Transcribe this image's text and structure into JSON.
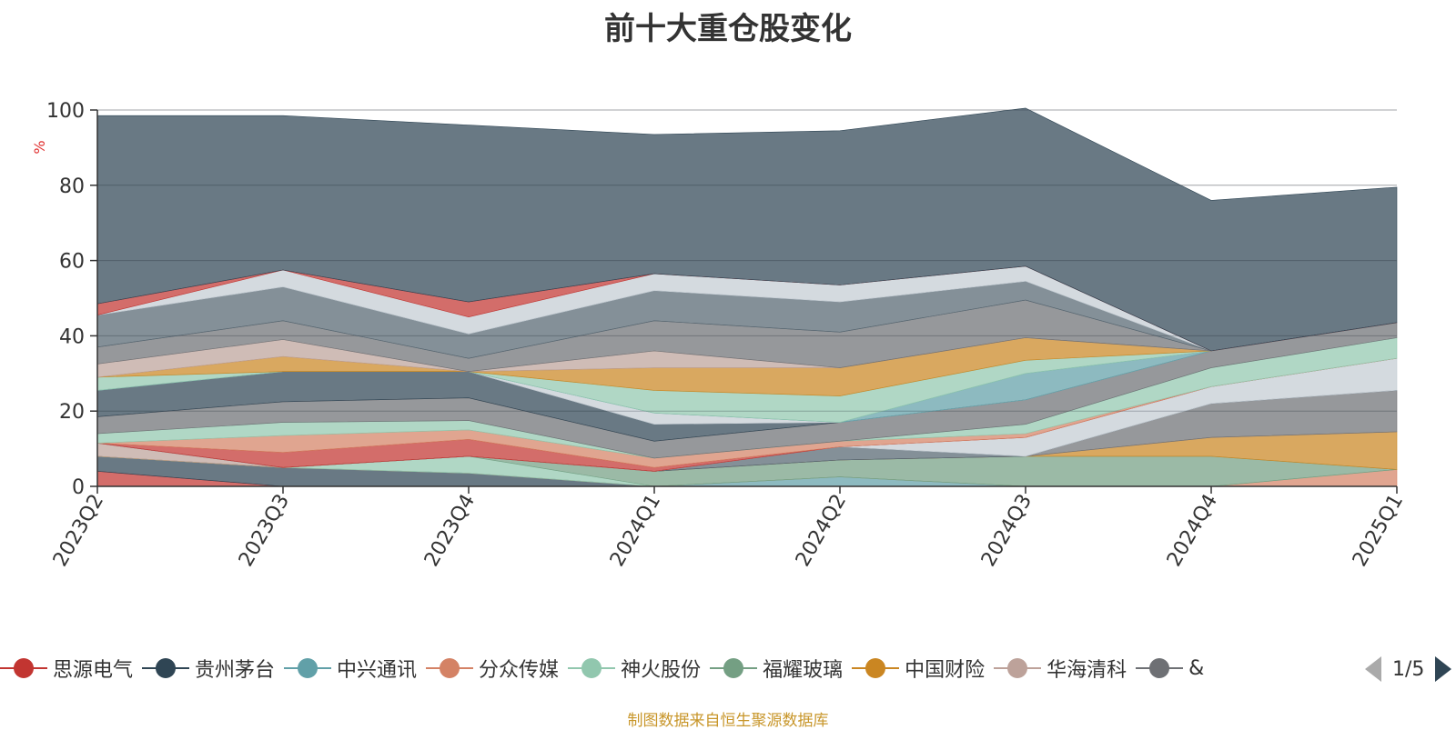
{
  "title": "前十大重仓股变化",
  "source": "制图数据来自恒生聚源数据库",
  "legend_pager": {
    "text": "1/5"
  },
  "chart_data": {
    "type": "area",
    "stacked": true,
    "title": "前十大重仓股变化",
    "ylabel": "%",
    "ylim": [
      0,
      100
    ],
    "yticks": [
      "0",
      "20",
      "40",
      "60",
      "80",
      "100"
    ],
    "grid": true,
    "categories": [
      "2023Q2",
      "2023Q3",
      "2023Q4",
      "2024Q1",
      "2024Q2",
      "2024Q3",
      "2024Q4",
      "2025Q1"
    ],
    "legend_position": "bottom",
    "legend": [
      "思源电气",
      "贵州茅台",
      "中兴通讯",
      "分众传媒",
      "神火股份",
      "福耀玻璃",
      "中国财险",
      "华海清科",
      "&"
    ],
    "series": [
      {
        "name": "思源电气",
        "color": "#c23531",
        "values": [
          4,
          0,
          0,
          0,
          0,
          0,
          0,
          0
        ]
      },
      {
        "name": "贵州茅台",
        "color": "#2f4554",
        "values": [
          4,
          5,
          3.5,
          0,
          0,
          0,
          0,
          0
        ]
      },
      {
        "name": "中兴通讯",
        "color": "#61a0a8",
        "values": [
          0,
          0,
          0,
          0,
          2.5,
          0,
          0,
          0
        ]
      },
      {
        "name": "分众传媒",
        "color": "#d48265",
        "values": [
          0,
          0,
          0,
          0,
          0,
          0,
          0,
          4.5
        ]
      },
      {
        "name": "神火股份",
        "color": "#91c7ae",
        "values": [
          0,
          0,
          4.5,
          0,
          0,
          0,
          0,
          0
        ]
      },
      {
        "name": "福耀玻璃",
        "color": "#749f83",
        "values": [
          0,
          0,
          0,
          4,
          4.5,
          8,
          8,
          0
        ]
      },
      {
        "name": "中国财险",
        "color": "#ca8622",
        "values": [
          0,
          0,
          0,
          0,
          0,
          0,
          5,
          10
        ]
      },
      {
        "name": "华海清科",
        "color": "#bda29a",
        "values": [
          3.5,
          0,
          0,
          0,
          0,
          0,
          0,
          0
        ]
      },
      {
        "color": "#6e7074",
        "values": [
          0,
          0,
          0,
          0,
          0,
          0,
          9,
          11
        ]
      },
      {
        "color": "#546570",
        "values": [
          0,
          0,
          0,
          0,
          3.5,
          0,
          0,
          0
        ]
      },
      {
        "color": "#c4ccd3",
        "values": [
          0,
          0,
          0,
          0,
          0,
          5,
          4.5,
          8.5
        ]
      },
      {
        "color": "#c23531",
        "values": [
          0,
          4,
          4.5,
          1,
          0,
          0,
          0,
          0
        ]
      },
      {
        "color": "#d48265",
        "values": [
          0,
          4.5,
          2.5,
          2.5,
          1.5,
          1,
          0,
          0
        ]
      },
      {
        "color": "#91c7ae",
        "values": [
          2.5,
          3.5,
          2.5,
          0,
          0,
          2.5,
          5,
          5.5
        ]
      },
      {
        "color": "#6e7074",
        "values": [
          4.5,
          5.5,
          6,
          4.5,
          5,
          6.5,
          4.5,
          4
        ]
      },
      {
        "color": "#bda29a",
        "values": [
          0,
          0,
          0,
          0,
          0,
          0,
          0,
          0
        ]
      },
      {
        "color": "#2f4554",
        "values": [
          7,
          8,
          7,
          4.5,
          0,
          0,
          0,
          0
        ]
      },
      {
        "color": "#c4ccd3",
        "values": [
          0,
          0,
          0,
          3,
          0,
          0,
          0,
          0
        ]
      },
      {
        "color": "#61a0a8",
        "values": [
          0,
          0,
          0,
          0,
          0,
          7,
          0,
          0
        ]
      },
      {
        "color": "#91c7ae",
        "values": [
          3.5,
          0,
          0,
          6,
          7,
          3.5,
          0,
          0
        ]
      },
      {
        "color": "#ca8622",
        "values": [
          0,
          4,
          0,
          6,
          7.5,
          6,
          0,
          0
        ]
      },
      {
        "color": "#bda29a",
        "values": [
          3.5,
          4.5,
          0,
          4.5,
          0,
          0,
          0,
          0
        ]
      },
      {
        "color": "#6e7074",
        "values": [
          4.5,
          5,
          3.5,
          8,
          9.5,
          10,
          0,
          0
        ]
      },
      {
        "color": "#546570",
        "values": [
          8.5,
          9,
          6.5,
          8,
          8,
          5,
          0,
          0
        ]
      },
      {
        "color": "#c4ccd3",
        "values": [
          0,
          4.5,
          4.5,
          4.5,
          4.5,
          4,
          0,
          0
        ]
      },
      {
        "color": "#c23531",
        "values": [
          3,
          0,
          4,
          0,
          0,
          0,
          0,
          0
        ]
      },
      {
        "color": "#2f4554",
        "values": [
          50,
          41,
          47,
          37,
          41,
          42,
          40,
          36
        ]
      }
    ]
  }
}
